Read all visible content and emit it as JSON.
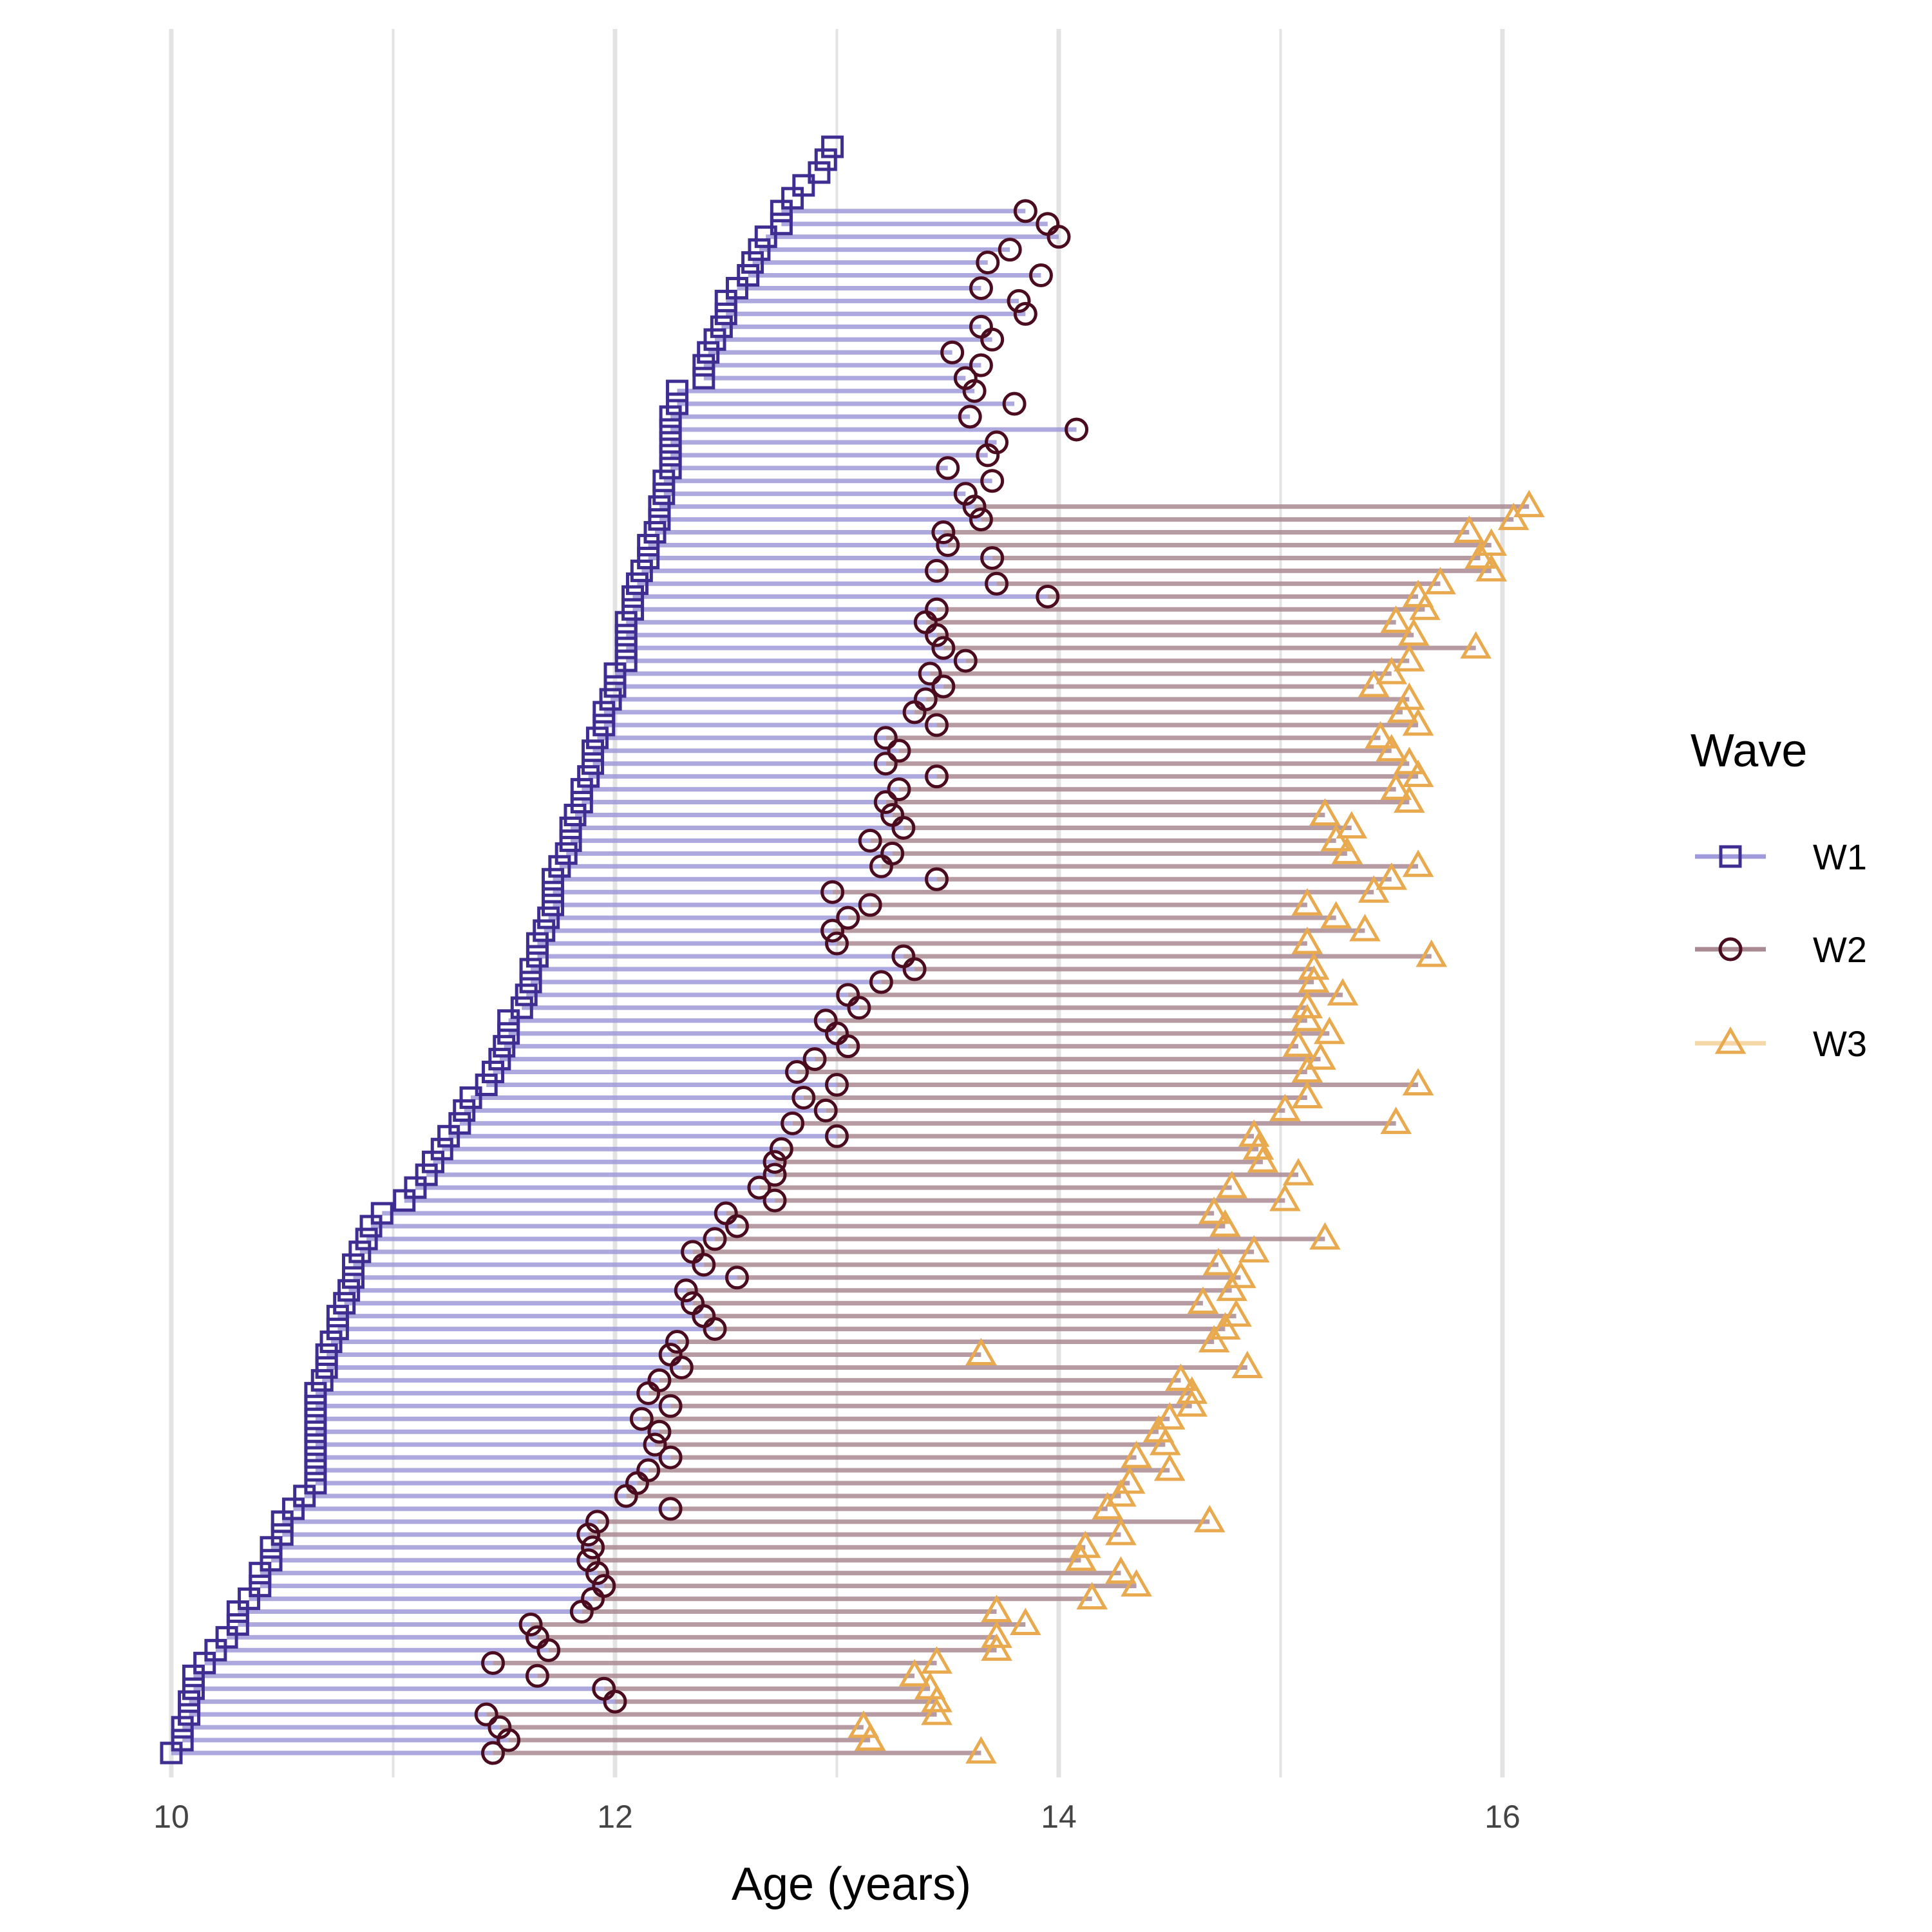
{
  "chart_data": {
    "type": "scatter",
    "xlabel": "Age (years)",
    "ylabel": "",
    "xlim": [
      10,
      16
    ],
    "x_ticks": [
      "10",
      "12",
      "14",
      "16"
    ],
    "grid": "vertical",
    "legend": {
      "title": "Wave",
      "placement": "right",
      "entries": [
        {
          "name": "W1",
          "marker": "square",
          "color": "#3f2d91",
          "line_color": "#9f9ad9"
        },
        {
          "name": "W2",
          "marker": "circle",
          "color": "#4a0c1e",
          "line_color": "#a98a93"
        },
        {
          "name": "W3",
          "marker": "triangle",
          "color": "#e8a94f",
          "line_color": "#f5d7a8"
        }
      ]
    },
    "series": [
      {
        "name": "W1",
        "values": [
          10.0,
          10.05,
          10.05,
          10.08,
          10.08,
          10.1,
          10.1,
          10.15,
          10.2,
          10.25,
          10.3,
          10.3,
          10.35,
          10.4,
          10.4,
          10.45,
          10.45,
          10.5,
          10.5,
          10.55,
          10.6,
          10.65,
          10.65,
          10.65,
          10.65,
          10.65,
          10.65,
          10.65,
          10.65,
          10.68,
          10.7,
          10.7,
          10.72,
          10.75,
          10.75,
          10.78,
          10.8,
          10.82,
          10.82,
          10.85,
          10.88,
          10.9,
          10.95,
          11.05,
          11.1,
          11.15,
          11.18,
          11.22,
          11.25,
          11.3,
          11.32,
          11.35,
          11.42,
          11.45,
          11.48,
          11.5,
          11.52,
          11.52,
          11.58,
          11.6,
          11.62,
          11.62,
          11.65,
          11.65,
          11.68,
          11.7,
          11.72,
          11.72,
          11.72,
          11.75,
          11.78,
          11.8,
          11.8,
          11.82,
          11.85,
          11.85,
          11.88,
          11.9,
          11.9,
          11.92,
          11.95,
          11.95,
          11.98,
          12.0,
          12.0,
          12.05,
          12.05,
          12.05,
          12.05,
          12.08,
          12.08,
          12.1,
          12.12,
          12.15,
          12.15,
          12.18,
          12.2,
          12.2,
          12.22,
          12.22,
          12.25,
          12.25,
          12.25,
          12.25,
          12.25,
          12.28,
          12.28,
          12.4,
          12.4,
          12.42,
          12.45,
          12.48,
          12.5,
          12.5,
          12.55,
          12.6,
          12.62,
          12.65,
          12.68,
          12.75,
          12.75,
          12.8,
          12.85,
          12.92,
          12.95,
          12.98
        ],
        "y_rank_from_top": [
          81,
          80,
          79,
          78,
          77,
          76,
          75,
          74,
          73,
          72,
          71,
          70,
          69,
          68,
          67,
          66,
          65,
          64,
          63,
          62,
          61,
          60,
          59,
          58,
          57,
          56,
          55,
          54,
          53,
          52,
          51,
          50,
          49,
          48,
          47,
          46,
          45,
          44,
          43,
          42,
          41,
          40,
          39,
          38,
          37,
          36,
          35,
          34,
          33,
          32,
          31,
          30,
          29,
          28,
          27,
          26,
          25,
          24,
          23,
          22,
          21,
          20,
          19,
          18,
          17,
          16,
          15,
          14,
          13,
          12,
          11,
          10,
          9,
          8,
          7,
          6,
          5,
          4,
          3,
          2,
          1,
          0,
          -1,
          -2,
          -3,
          -4,
          -5,
          -6,
          -7,
          -8,
          -9,
          -10,
          -11,
          -12,
          -13,
          -14,
          -15,
          -16,
          -17,
          -18,
          -19,
          -20,
          -21,
          -22,
          -23,
          -24,
          -25,
          -26,
          -27,
          -28,
          -29,
          -30,
          -31,
          -32,
          -33,
          -34,
          -35,
          -36,
          -37,
          -38,
          -39,
          -40,
          -41,
          -42,
          -43,
          -44
        ]
      },
      {
        "name": "W2",
        "values": [
          11.45,
          11.52,
          11.48,
          11.42,
          12.0,
          11.95,
          11.65,
          11.45,
          11.7,
          11.65,
          11.62,
          11.85,
          11.9,
          11.95,
          11.92,
          11.88,
          11.9,
          11.88,
          11.92,
          12.25,
          12.05,
          12.1,
          12.15,
          12.25,
          12.18,
          12.2,
          12.12,
          12.25,
          12.15,
          12.2,
          12.3,
          12.25,
          12.28,
          12.45,
          12.4,
          12.35,
          12.32,
          12.55,
          12.4,
          12.35,
          12.45,
          12.55,
          12.5,
          12.72,
          12.65,
          12.72,
          12.72,
          12.75,
          13.0,
          12.8,
          12.95,
          12.85,
          13.0,
          12.82,
          12.9,
          13.05,
          13.0,
          12.95,
          13.1,
          13.05,
          13.2,
          13.35,
          13.3,
          13.0,
          12.98,
          13.05,
          13.15,
          12.98,
          13.45,
          13.2,
          13.25,
          13.15,
          13.3,
          13.25,
          13.22,
          13.28,
          13.45,
          13.22,
          13.28,
          13.22,
          13.45,
          13.35,
          13.4,
          13.48,
          13.42,
          13.58,
          13.48,
          13.45,
          13.4,
          13.45,
          13.95,
          13.72,
          13.45,
          13.7,
          13.5,
          13.48,
          13.65,
          13.62,
          13.58,
          13.7,
          13.5,
          13.68,
          13.72,
          14.08,
          13.6,
          13.8,
          13.62,
          13.58,
          13.65,
          13.52,
          13.7,
          13.65,
          13.85,
          13.82,
          13.65,
          13.92,
          13.68,
          13.78,
          14.0,
          13.95,
          13.85
        ],
        "y_rank_from_top": []
      },
      {
        "name": "W3",
        "values": [
          13.65,
          13.15,
          13.12,
          13.45,
          13.45,
          13.42,
          13.35,
          13.45,
          13.72,
          13.72,
          13.85,
          13.72,
          14.15,
          14.35,
          14.28,
          14.1,
          14.12,
          14.28,
          14.68,
          14.22,
          14.28,
          14.32,
          14.5,
          14.35,
          14.48,
          14.45,
          14.5,
          14.6,
          14.6,
          14.55,
          14.85,
          13.65,
          14.7,
          14.75,
          14.8,
          14.65,
          14.78,
          14.82,
          14.72,
          14.88,
          15.2,
          14.75,
          14.7,
          15.02,
          14.78,
          15.08,
          14.92,
          14.9,
          14.88,
          15.52,
          15.02,
          15.12,
          15.62,
          15.12,
          15.18,
          15.08,
          15.22,
          15.12,
          15.12,
          15.28,
          15.15,
          15.15,
          15.68,
          15.12,
          15.38,
          15.25,
          15.12,
          15.42,
          15.5,
          15.62,
          15.3,
          15.25,
          15.32,
          15.2,
          15.58,
          15.52,
          15.62,
          15.58,
          15.5,
          15.45,
          15.62,
          15.55,
          15.58,
          15.42,
          15.5,
          15.58,
          15.88,
          15.6,
          15.52,
          15.65,
          15.62,
          15.72,
          15.95,
          15.9,
          15.95,
          15.85,
          16.05,
          16.12
        ]
      }
    ]
  }
}
